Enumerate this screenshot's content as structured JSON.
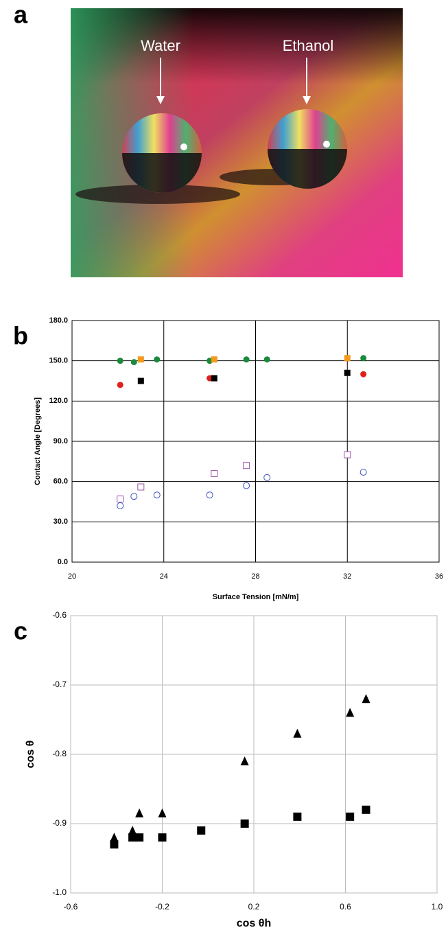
{
  "photo": {
    "panel_label": "a",
    "annotations": [
      "Water",
      "Ethanol"
    ]
  },
  "chart_data": [
    {
      "type": "scatter",
      "panel_label": "b",
      "x_label": "Surface Tension [mN/m]",
      "y_label": "Contact Angle [Degrees]",
      "xlim": [
        20,
        36
      ],
      "xticks": [
        20,
        24,
        28,
        32,
        36
      ],
      "ylim": [
        0,
        180
      ],
      "yticks": [
        {
          "value": 0,
          "label": "0.0"
        },
        {
          "value": 30,
          "label": "30.0"
        },
        {
          "value": 60,
          "label": "60.0"
        },
        {
          "value": 90,
          "label": "90.0"
        },
        {
          "value": 120,
          "label": "120.0"
        },
        {
          "value": 150,
          "label": "150.0"
        },
        {
          "value": 180,
          "label": "180.0"
        }
      ],
      "grid": true,
      "grid_color": "#000000",
      "series": [
        {
          "marker": "circle",
          "filled": true,
          "color": "#1a8a3c",
          "x": [
            22.1,
            22.7,
            23.7,
            26,
            27.6,
            28.5,
            32.7
          ],
          "values": [
            150,
            149,
            151,
            150,
            151,
            151,
            152
          ]
        },
        {
          "marker": "square",
          "filled": true,
          "color": "#f39a1e",
          "x": [
            23,
            26.2,
            32
          ],
          "values": [
            151,
            151,
            152
          ]
        },
        {
          "marker": "circle",
          "filled": true,
          "color": "#e0201b",
          "x": [
            22.1,
            26,
            32.7
          ],
          "values": [
            132,
            137,
            140
          ]
        },
        {
          "marker": "square",
          "filled": true,
          "color": "#000000",
          "x": [
            23,
            26.2,
            32
          ],
          "values": [
            135,
            137,
            141
          ]
        },
        {
          "marker": "square",
          "filled": false,
          "color": "#a050b0",
          "x": [
            22.1,
            23,
            26.2,
            27.6,
            32
          ],
          "values": [
            47,
            56,
            66,
            72,
            80
          ]
        },
        {
          "marker": "circle",
          "filled": false,
          "color": "#3a50c0",
          "x": [
            22.1,
            22.7,
            23.7,
            26,
            27.6,
            28.5,
            32.7
          ],
          "values": [
            42,
            49,
            50,
            50,
            57,
            63,
            67
          ]
        }
      ]
    },
    {
      "type": "scatter",
      "panel_label": "c",
      "x_label": "cos θh",
      "y_label": "cos θ",
      "xlim": [
        -0.6,
        1.0
      ],
      "xticks": [
        -0.6,
        -0.2,
        0.2,
        0.6,
        {
          "value": 1.0,
          "label": "1.0"
        }
      ],
      "ylim": [
        -1.0,
        -0.6
      ],
      "yticks": [
        -0.6,
        -0.7,
        -0.8,
        -0.9,
        {
          "value": -1.0,
          "label": "-1.0"
        }
      ],
      "grid": true,
      "grid_color": "#bbbbbb",
      "series": [
        {
          "marker": "triangle",
          "filled": true,
          "color": "#000000",
          "x": [
            -0.41,
            -0.33,
            -0.3,
            -0.2,
            0.16,
            0.39,
            0.62,
            0.69
          ],
          "values": [
            -0.92,
            -0.91,
            -0.885,
            -0.885,
            -0.81,
            -0.77,
            -0.74,
            -0.72
          ]
        },
        {
          "marker": "square",
          "filled": true,
          "color": "#000000",
          "x": [
            -0.41,
            -0.33,
            -0.3,
            -0.2,
            -0.03,
            0.16,
            0.39,
            0.62,
            0.69
          ],
          "values": [
            -0.93,
            -0.92,
            -0.92,
            -0.92,
            -0.91,
            -0.9,
            -0.89,
            -0.89,
            -0.88
          ]
        }
      ]
    }
  ]
}
